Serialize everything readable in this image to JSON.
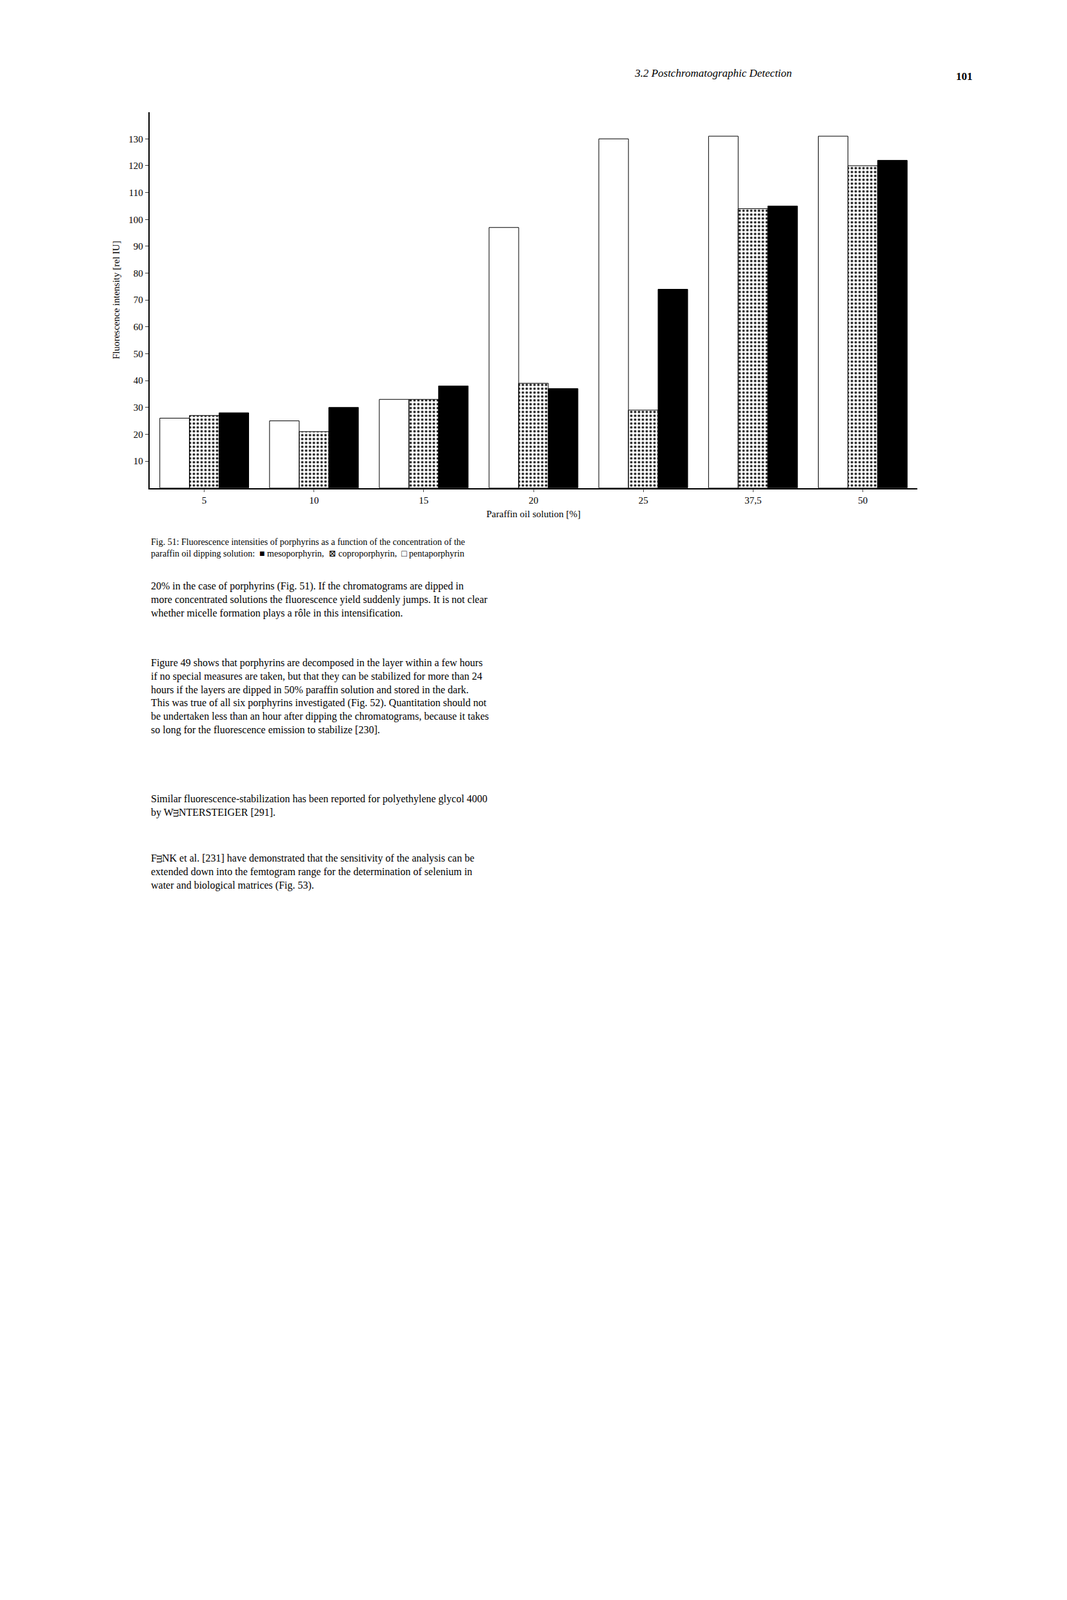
{
  "chart_data": {
    "type": "bar",
    "title": "3.2 Postchromatographic Detection",
    "xlabel": "Paraffin oil solution [%]",
    "ylabel": "Fluorescence intensity [rel IU]",
    "categories": [
      "5",
      "10",
      "15",
      "20",
      "25",
      "37,5",
      "50"
    ],
    "series": [
      {
        "name": "pentaporphyrin",
        "color": "#ffffff",
        "values": [
          26,
          25,
          33,
          97,
          130,
          131,
          131
        ]
      },
      {
        "name": "coproporphyrin",
        "color": "#ffffff",
        "marker": "dots",
        "values": [
          27,
          21,
          33,
          39,
          29,
          104,
          120
        ]
      },
      {
        "name": "mesoporphyrin",
        "color": "#000000",
        "values": [
          28,
          30,
          38,
          37,
          74,
          105,
          122
        ]
      }
    ],
    "ylim": [
      0,
      140
    ],
    "yticks": [
      10,
      20,
      30,
      40,
      50,
      60,
      70,
      80,
      90,
      100,
      110,
      120,
      130
    ],
    "grid": false,
    "annotations": [
      "101",
      "Fig. 51: Fluorescence intensities of porphyrins as a function of the concentration of the\nparaffin oil dipping solution:  ■ mesoporphyrin,  ⊠ coproporphyrin,  □ pentaporphyrin",
      "20% in the case of porphyrins (Fig. 51). If the chromatograms are dipped in\nmore concentrated solutions the fluorescence yield suddenly jumps. It is not clear\nwhether micelle formation plays a rôle in this intensification.",
      "Figure 49 shows that porphyrins are decomposed in the layer within a few hours\nif no special measures are taken, but that they can be stabilized for more than 24\nhours if the layers are dipped in 50% paraffin solution and stored in the dark.\nThis was true of all six porphyrins investigated (Fig. 52). Quantitation should not\nbe undertaken less than an hour after dipping the chromatograms, because it takes\nso long for the fluorescence emission to stabilize [230].",
      "Similar fluorescence-stabilization has been reported for polyethylene glycol 4000\nby WᴟNTERSTEIGER [291].",
      "FᴟNK et al. [231] have demonstrated that the sensitivity of the analysis can be\nextended down into the femtogram range for the determination of selenium in\nwater and biological matrices (Fig. 53)."
    ]
  }
}
